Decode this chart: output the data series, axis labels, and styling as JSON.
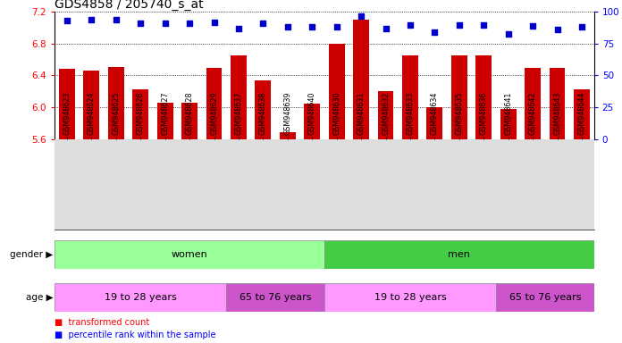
{
  "title": "GDS4858 / 205740_s_at",
  "samples": [
    "GSM948623",
    "GSM948624",
    "GSM948625",
    "GSM948626",
    "GSM948627",
    "GSM948628",
    "GSM948629",
    "GSM948637",
    "GSM948638",
    "GSM948639",
    "GSM948640",
    "GSM948630",
    "GSM948631",
    "GSM948632",
    "GSM948633",
    "GSM948634",
    "GSM948635",
    "GSM948636",
    "GSM948641",
    "GSM948642",
    "GSM948643",
    "GSM948644"
  ],
  "bar_values": [
    6.48,
    6.46,
    6.51,
    6.22,
    6.06,
    6.06,
    6.5,
    6.65,
    6.34,
    5.68,
    6.04,
    6.8,
    7.1,
    6.2,
    6.65,
    6.0,
    6.65,
    6.65,
    5.98,
    6.5,
    6.5,
    6.22
  ],
  "percentile_values": [
    93,
    94,
    94,
    91,
    91,
    91,
    92,
    87,
    91,
    88,
    88,
    88,
    97,
    87,
    90,
    84,
    90,
    90,
    83,
    89,
    86,
    88
  ],
  "ylim_left": [
    5.6,
    7.2
  ],
  "ylim_right": [
    0,
    100
  ],
  "bar_color": "#CC0000",
  "dot_color": "#0000CC",
  "title_fontsize": 10,
  "gender_groups": [
    {
      "label": "women",
      "start": 0,
      "end": 11,
      "color": "#99FF99"
    },
    {
      "label": "men",
      "start": 11,
      "end": 22,
      "color": "#44CC44"
    }
  ],
  "age_groups": [
    {
      "label": "19 to 28 years",
      "start": 0,
      "end": 7,
      "color": "#FF99FF"
    },
    {
      "label": "65 to 76 years",
      "start": 7,
      "end": 11,
      "color": "#CC55CC"
    },
    {
      "label": "19 to 28 years",
      "start": 11,
      "end": 18,
      "color": "#FF99FF"
    },
    {
      "label": "65 to 76 years",
      "start": 18,
      "end": 22,
      "color": "#CC55CC"
    }
  ],
  "legend_bar_label": "transformed count",
  "legend_dot_label": "percentile rank within the sample",
  "yticks_left": [
    5.6,
    6.0,
    6.4,
    6.8,
    7.2
  ],
  "yticks_right": [
    0,
    25,
    50,
    75,
    100
  ],
  "bg_color": "#FFFFFF"
}
